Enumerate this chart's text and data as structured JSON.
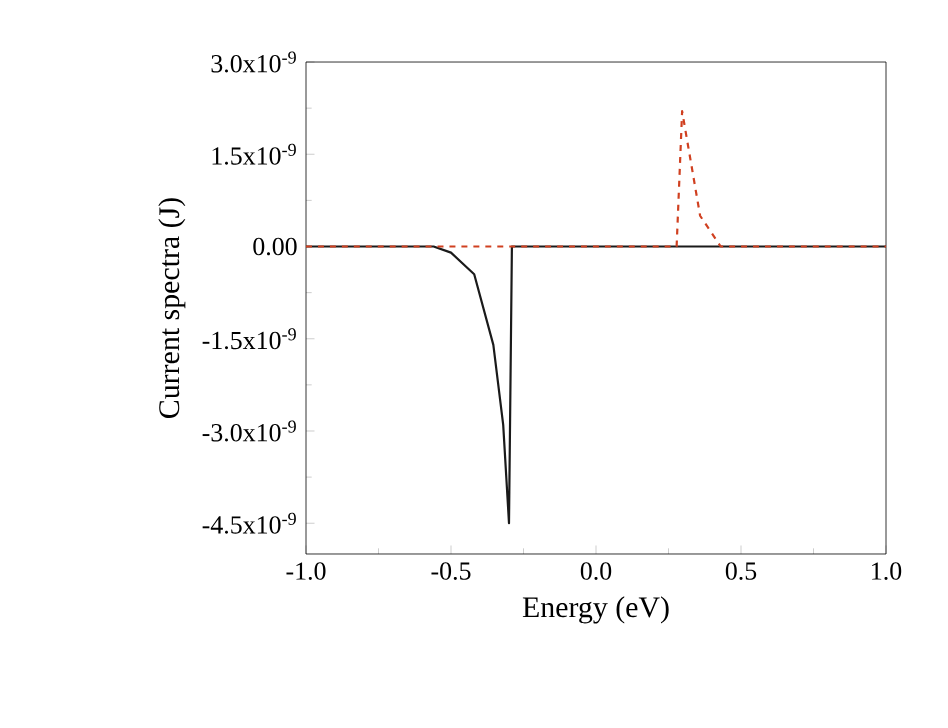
{
  "chart_data": {
    "type": "line",
    "xlabel": "Energy (eV)",
    "ylabel": "Current spectra (J)",
    "xlim": [
      -1.0,
      1.0
    ],
    "ylim": [
      -5e-09,
      3e-09
    ],
    "xticks": [
      {
        "value": -1.0,
        "label": "-1.0"
      },
      {
        "value": -0.5,
        "label": "-0.5"
      },
      {
        "value": 0.0,
        "label": "0.0"
      },
      {
        "value": 0.5,
        "label": "0.5"
      },
      {
        "value": 1.0,
        "label": "1.0"
      }
    ],
    "yticks": [
      {
        "value": 3e-09,
        "label": "3.0x10$^{-9}$"
      },
      {
        "value": 1.5e-09,
        "label": "1.5x10$^{-9}$"
      },
      {
        "value": 0,
        "label": "0.00"
      },
      {
        "value": -1.5e-09,
        "label": "-1.5x10$^{-9}$"
      },
      {
        "value": -3e-09,
        "label": "-3.0x10$^{-9}$"
      },
      {
        "value": -4.5e-09,
        "label": "-4.5x10$^{-9}$"
      }
    ],
    "series": [
      {
        "color": "#1a1a1a",
        "line_style": "solid",
        "x": [
          -1.0,
          -0.56,
          -0.5,
          -0.42,
          -0.354,
          -0.32,
          -0.3,
          -0.29,
          1.0
        ],
        "values": [
          0,
          0,
          -1e-10,
          -4.5e-10,
          -1.6e-09,
          -2.9e-09,
          -4.5e-09,
          0,
          0
        ]
      },
      {
        "color": "#d04020",
        "line_style": "dashed",
        "x": [
          -1.0,
          0.278,
          0.297,
          0.359,
          0.43,
          1.0
        ],
        "values": [
          0,
          0,
          2.2e-09,
          5e-10,
          0,
          0
        ]
      }
    ]
  }
}
